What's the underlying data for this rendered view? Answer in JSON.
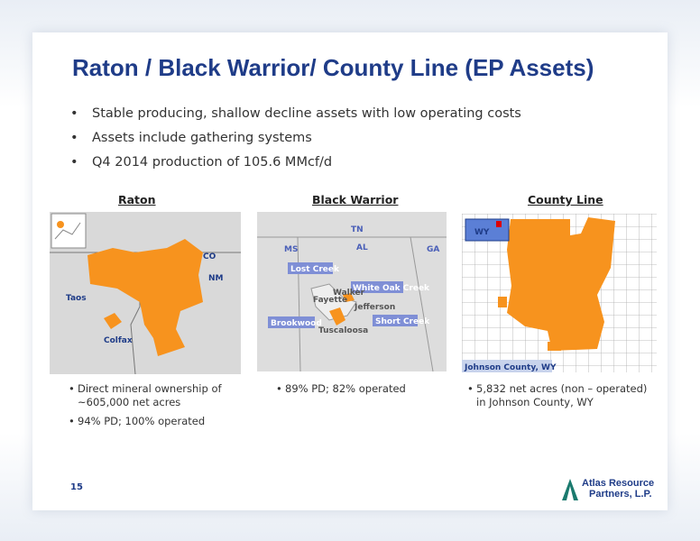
{
  "title": "Raton / Black Warrior/ County Line (EP Assets)",
  "bullets": [
    "Stable producing, shallow decline assets with low operating costs",
    "Assets include gathering systems",
    "Q4 2014 production of 105.6 MMcf/d"
  ],
  "panels": [
    {
      "heading": "Raton",
      "map_labels": [
        "CO",
        "NM",
        "Taos",
        "Colfax"
      ],
      "bullets": [
        "Direct mineral ownership of ~605,000 net acres",
        "94% PD; 100% operated"
      ]
    },
    {
      "heading": "Black Warrior",
      "map_labels": [
        "TN",
        "MS",
        "AL",
        "GA",
        "Lost Creek",
        "White Oak Creek",
        "Brookwood",
        "Short Creek",
        "Fayette",
        "Walker",
        "Jefferson",
        "Tuscaloosa"
      ],
      "bullets": [
        "89% PD; 82% operated"
      ]
    },
    {
      "heading": "County Line",
      "map_labels": [
        "WY",
        "Johnson County, WY"
      ],
      "bullets": [
        "5,832 net acres (non – operated) in Johnson County, WY"
      ]
    }
  ],
  "page_number": "15",
  "logo_lines": [
    "Atlas Resource",
    "Partners, L.P."
  ]
}
